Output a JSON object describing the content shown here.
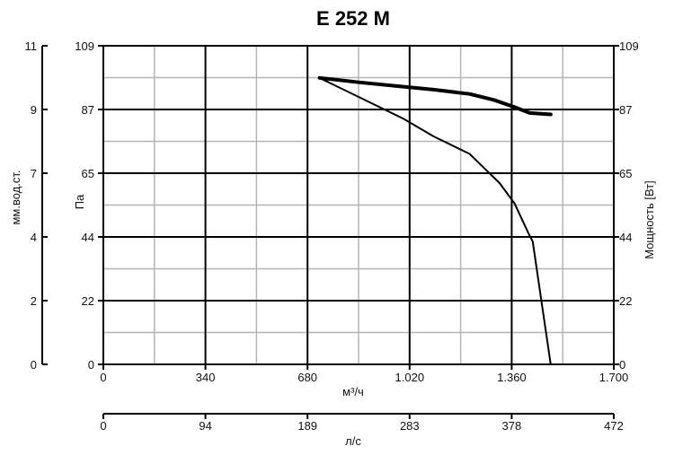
{
  "chart_data": {
    "type": "line",
    "title": "E 252 M",
    "x_primary": {
      "label": "м³/ч",
      "ticks": [
        "0",
        "340",
        "680",
        "1.020",
        "1.360",
        "1.700"
      ],
      "range": [
        0,
        1700
      ]
    },
    "x_secondary": {
      "label": "л/с",
      "ticks": [
        "0",
        "94",
        "189",
        "283",
        "378",
        "472"
      ]
    },
    "y_left_outer": {
      "label": "мм.вод.ст.",
      "ticks": [
        "0",
        "2",
        "4",
        "7",
        "9",
        "11"
      ]
    },
    "y_left_inner": {
      "label": "Па",
      "ticks": [
        "0",
        "22",
        "44",
        "65",
        "87",
        "109"
      ],
      "range": [
        0,
        109
      ]
    },
    "y_right": {
      "label": "Мощность [Вт]",
      "ticks": [
        "0",
        "22",
        "44",
        "65",
        "87",
        "109"
      ],
      "range": [
        0,
        109
      ]
    },
    "grid": true,
    "series": [
      {
        "role": "pressure",
        "x": [
          720,
          1000,
          1100,
          1220,
          1270,
          1320,
          1370,
          1415,
          1430,
          1490
        ],
        "y": [
          98,
          84,
          78,
          72,
          67,
          62,
          55,
          45,
          42,
          0
        ]
      },
      {
        "role": "power",
        "x": [
          720,
          850,
          1000,
          1100,
          1220,
          1300,
          1370,
          1420,
          1490
        ],
        "y": [
          98,
          96.5,
          95,
          94,
          92.5,
          90.5,
          88,
          86,
          85.5
        ]
      }
    ]
  }
}
